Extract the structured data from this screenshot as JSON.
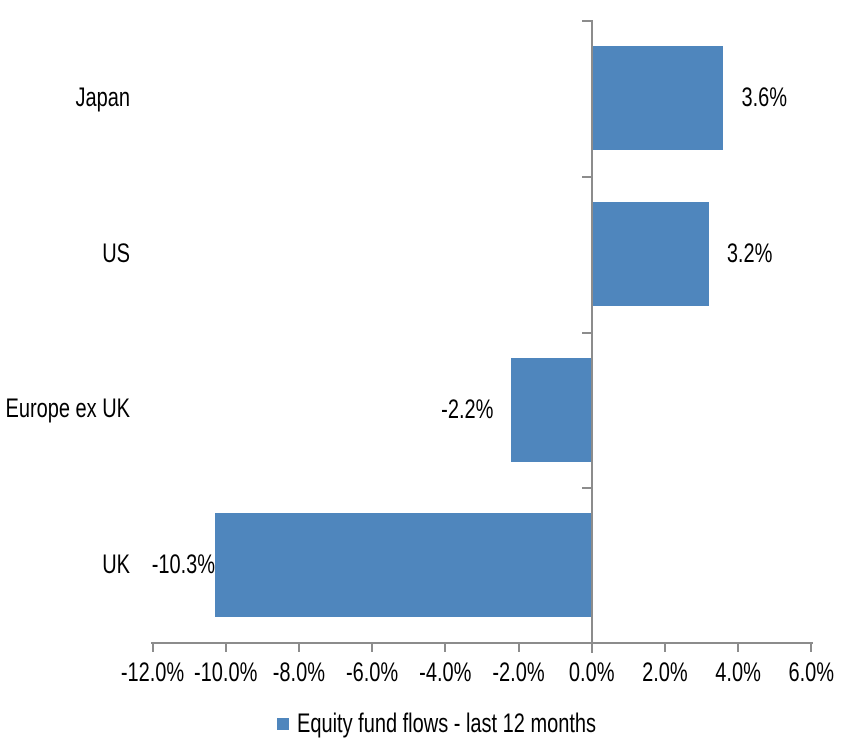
{
  "chart_data": {
    "type": "bar",
    "orientation": "horizontal",
    "title": "",
    "categories": [
      "Japan",
      "US",
      "Europe ex UK",
      "UK"
    ],
    "values": [
      3.6,
      3.2,
      -2.2,
      -10.3
    ],
    "data_labels": [
      "3.6%",
      "3.2%",
      "-2.2%",
      "-10.3%"
    ],
    "xlim": [
      -12,
      6
    ],
    "x_ticks": [
      -12,
      -10,
      -8,
      -6,
      -4,
      -2,
      0,
      2,
      4,
      6
    ],
    "x_tick_labels": [
      "-12.0%",
      "-10.0%",
      "-8.0%",
      "-6.0%",
      "-4.0%",
      "-2.0%",
      "0.0%",
      "2.0%",
      "4.0%",
      "6.0%"
    ],
    "grid": false,
    "legend_position": "bottom",
    "legend": "Equity fund flows - last 12 months",
    "colors": {
      "bar": "#4F86BD",
      "axis": "#8C8C8C",
      "text": "#000000",
      "background": "#FFFFFF"
    }
  }
}
